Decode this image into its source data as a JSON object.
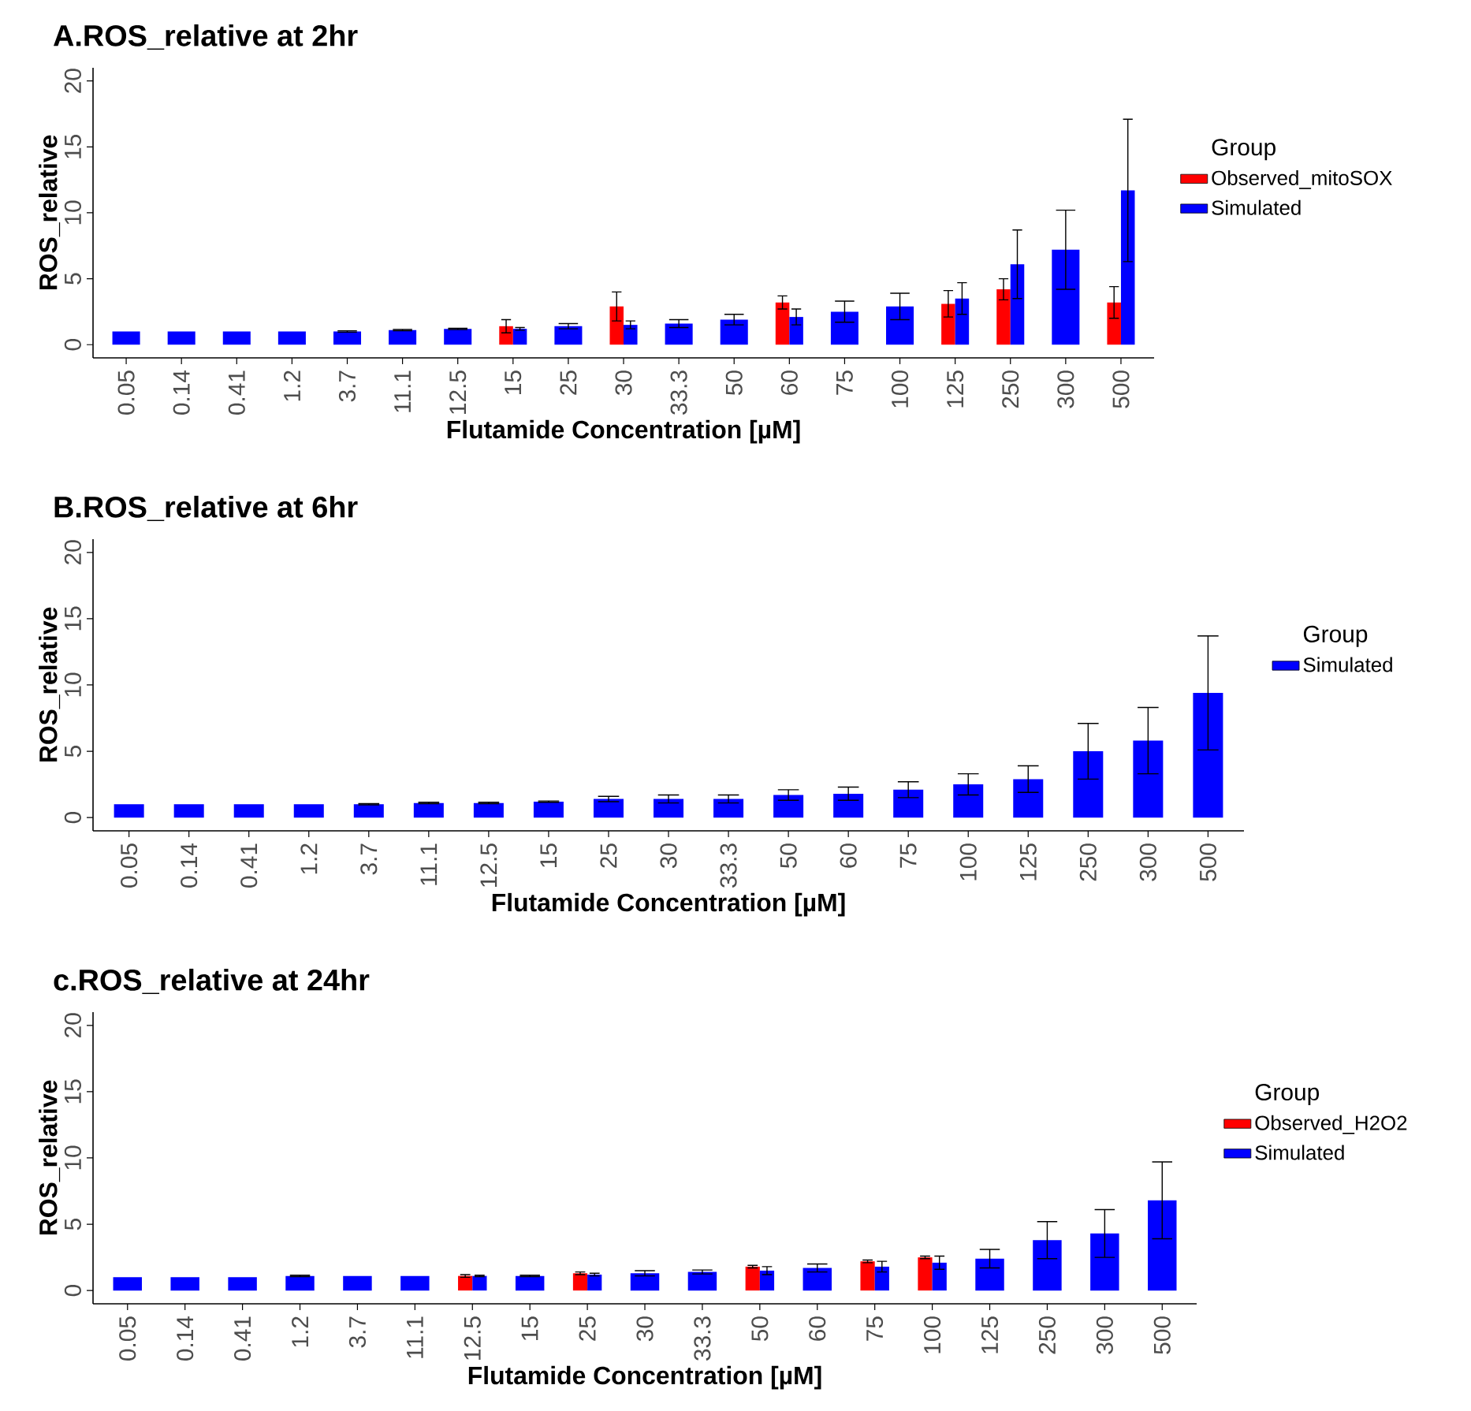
{
  "chart_data": [
    {
      "type": "bar",
      "title": "A.ROS_relative at 2hr",
      "xlabel": "Flutamide Concentration [µM]",
      "ylabel": "ROS_relative",
      "legend_title": "Group",
      "legend": "right",
      "categories": [
        "0.05",
        "0.14",
        "0.41",
        "1.2",
        "3.7",
        "11.1",
        "12.5",
        "15",
        "25",
        "30",
        "33.3",
        "50",
        "60",
        "75",
        "100",
        "125",
        "250",
        "300",
        "500"
      ],
      "ylim": [
        -1,
        21
      ],
      "yticks": [
        0,
        5,
        10,
        15,
        20
      ],
      "series": [
        {
          "name": "Observed_mitoSOX",
          "color": "#ff0000",
          "values": [
            null,
            null,
            null,
            null,
            null,
            null,
            null,
            1.4,
            null,
            2.9,
            null,
            null,
            3.2,
            null,
            null,
            3.1,
            4.2,
            null,
            3.2
          ],
          "errors": [
            null,
            null,
            null,
            null,
            null,
            null,
            null,
            0.5,
            null,
            1.1,
            null,
            null,
            0.5,
            null,
            null,
            1.0,
            0.8,
            null,
            1.2
          ]
        },
        {
          "name": "Simulated",
          "color": "#0000ff",
          "values": [
            1.0,
            1.0,
            1.0,
            1.0,
            1.0,
            1.1,
            1.2,
            1.2,
            1.4,
            1.5,
            1.6,
            1.9,
            2.1,
            2.5,
            2.9,
            3.5,
            6.1,
            7.2,
            11.7
          ],
          "errors": [
            null,
            null,
            null,
            null,
            0.05,
            0.05,
            0.05,
            0.1,
            0.2,
            0.3,
            0.3,
            0.4,
            0.6,
            0.8,
            1.0,
            1.2,
            2.6,
            3.0,
            5.4
          ]
        }
      ]
    },
    {
      "type": "bar",
      "title": "B.ROS_relative at 6hr",
      "xlabel": "Flutamide Concentration [µM]",
      "ylabel": "ROS_relative",
      "legend_title": "Group",
      "legend": "right",
      "categories": [
        "0.05",
        "0.14",
        "0.41",
        "1.2",
        "3.7",
        "11.1",
        "12.5",
        "15",
        "25",
        "30",
        "33.3",
        "50",
        "60",
        "75",
        "100",
        "125",
        "250",
        "300",
        "500"
      ],
      "ylim": [
        -1,
        21
      ],
      "yticks": [
        0,
        5,
        10,
        15,
        20
      ],
      "series": [
        {
          "name": "Simulated",
          "color": "#0000ff",
          "values": [
            1.0,
            1.0,
            1.0,
            1.0,
            1.0,
            1.1,
            1.1,
            1.2,
            1.4,
            1.4,
            1.4,
            1.7,
            1.8,
            2.1,
            2.5,
            2.9,
            5.0,
            5.8,
            9.4
          ],
          "errors": [
            null,
            null,
            null,
            null,
            0.05,
            0.05,
            0.05,
            0.05,
            0.2,
            0.3,
            0.3,
            0.4,
            0.5,
            0.6,
            0.8,
            1.0,
            2.1,
            2.5,
            4.3
          ]
        }
      ]
    },
    {
      "type": "bar",
      "title": "c.ROS_relative at 24hr",
      "xlabel": "Flutamide Concentration [µM]",
      "ylabel": "ROS_relative",
      "legend_title": "Group",
      "legend": "right",
      "categories": [
        "0.05",
        "0.14",
        "0.41",
        "1.2",
        "3.7",
        "11.1",
        "12.5",
        "15",
        "25",
        "30",
        "33.3",
        "50",
        "60",
        "75",
        "100",
        "125",
        "250",
        "300",
        "500"
      ],
      "ylim": [
        -1,
        21
      ],
      "yticks": [
        0,
        5,
        10,
        15,
        20
      ],
      "series": [
        {
          "name": "Observed_H2O2",
          "color": "#ff0000",
          "values": [
            null,
            null,
            null,
            null,
            null,
            null,
            1.1,
            null,
            1.3,
            null,
            null,
            1.8,
            null,
            2.2,
            2.5,
            null,
            null,
            null,
            null
          ],
          "errors": [
            null,
            null,
            null,
            null,
            null,
            null,
            0.1,
            null,
            0.1,
            null,
            null,
            0.1,
            null,
            0.1,
            0.1,
            null,
            null,
            null,
            null
          ]
        },
        {
          "name": "Simulated",
          "color": "#0000ff",
          "values": [
            1.0,
            1.0,
            1.0,
            1.1,
            1.1,
            1.1,
            1.1,
            1.1,
            1.2,
            1.3,
            1.4,
            1.5,
            1.7,
            1.8,
            2.1,
            2.4,
            3.8,
            4.3,
            6.8
          ],
          "errors": [
            null,
            null,
            null,
            0.05,
            null,
            null,
            0.05,
            0.05,
            0.1,
            0.2,
            0.15,
            0.3,
            0.3,
            0.4,
            0.5,
            0.7,
            1.4,
            1.8,
            2.9
          ]
        }
      ]
    }
  ]
}
